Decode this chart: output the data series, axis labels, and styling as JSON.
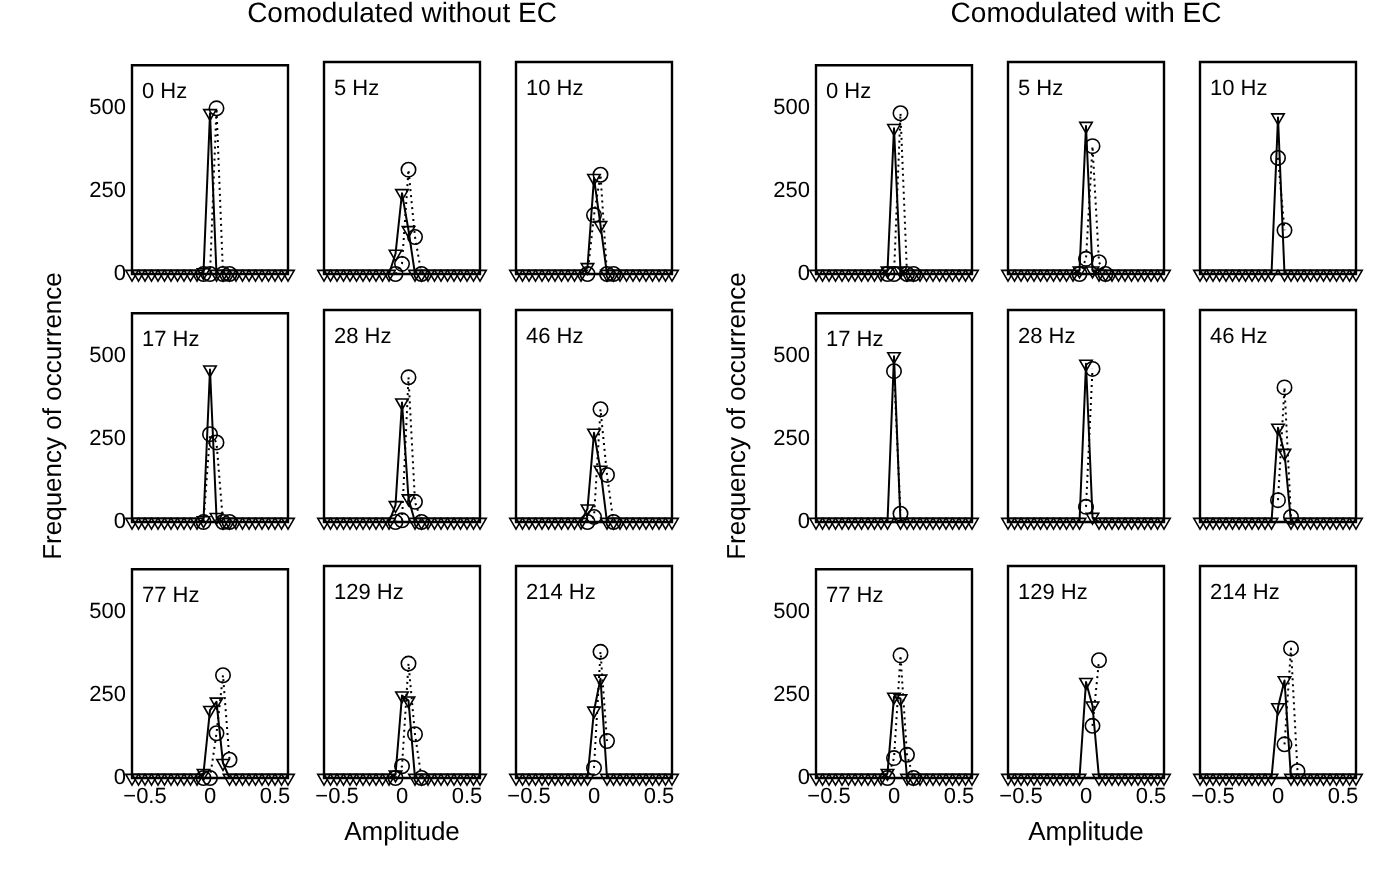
{
  "chart_data": [
    {
      "type": "line",
      "annotations": [
        "0 Hz"
      ],
      "x": [
        -0.6,
        -0.55,
        -0.5,
        -0.45,
        -0.4,
        -0.35,
        -0.3,
        -0.25,
        -0.2,
        -0.15,
        -0.1,
        -0.05,
        0,
        0.05,
        0.1,
        0.15,
        0.2,
        0.25,
        0.3,
        0.35,
        0.4,
        0.45,
        0.5,
        0.55,
        0.6
      ],
      "xlim": [
        -0.6,
        0.6
      ],
      "xticks": [
        -0.5,
        0,
        0.5
      ],
      "ylim": [
        0,
        630
      ],
      "yticks": [
        0,
        250,
        500
      ],
      "tick_labels": "y",
      "series": [
        {
          "color": "#000000",
          "marker": "triangle",
          "line_style": "solid",
          "values": [
            0,
            0,
            0,
            0,
            0,
            0,
            0,
            0,
            0,
            0,
            0,
            5,
            485,
            0,
            0,
            0,
            0,
            0,
            0,
            0,
            0,
            0,
            0,
            0,
            0
          ]
        },
        {
          "color": "#000000",
          "marker": "circle",
          "line_style": "dotted",
          "x": [
            -0.05,
            0,
            0.05,
            0.1,
            0.15
          ],
          "values": [
            0,
            0,
            500,
            0,
            0
          ]
        }
      ]
    },
    {
      "type": "line",
      "title": "Comodulated without EC",
      "annotations": [
        "5 Hz"
      ],
      "x": [
        -0.6,
        -0.55,
        -0.5,
        -0.45,
        -0.4,
        -0.35,
        -0.3,
        -0.25,
        -0.2,
        -0.15,
        -0.1,
        -0.05,
        0,
        0.05,
        0.1,
        0.15,
        0.2,
        0.25,
        0.3,
        0.35,
        0.4,
        0.45,
        0.5,
        0.55,
        0.6
      ],
      "xlim": [
        -0.6,
        0.6
      ],
      "xticks": [
        -0.5,
        0,
        0.5
      ],
      "ylim": [
        0,
        630
      ],
      "yticks": [
        0,
        250,
        500
      ],
      "tick_labels": false,
      "series": [
        {
          "color": "#000000",
          "marker": "triangle",
          "line_style": "solid",
          "values": [
            0,
            0,
            0,
            0,
            0,
            0,
            0,
            0,
            0,
            0,
            0,
            60,
            240,
            130,
            0,
            0,
            0,
            0,
            0,
            0,
            0,
            0,
            0,
            0,
            0
          ]
        },
        {
          "color": "#000000",
          "marker": "circle",
          "line_style": "dotted",
          "x": [
            -0.05,
            0,
            0.05,
            0.1,
            0.15
          ],
          "values": [
            0,
            30,
            310,
            110,
            0
          ]
        }
      ]
    },
    {
      "type": "line",
      "annotations": [
        "10 Hz"
      ],
      "x": [
        -0.6,
        -0.55,
        -0.5,
        -0.45,
        -0.4,
        -0.35,
        -0.3,
        -0.25,
        -0.2,
        -0.15,
        -0.1,
        -0.05,
        0,
        0.05,
        0.1,
        0.15,
        0.2,
        0.25,
        0.3,
        0.35,
        0.4,
        0.45,
        0.5,
        0.55,
        0.6
      ],
      "xlim": [
        -0.6,
        0.6
      ],
      "xticks": [
        -0.5,
        0,
        0.5
      ],
      "ylim": [
        0,
        630
      ],
      "yticks": [
        0,
        250,
        500
      ],
      "tick_labels": false,
      "series": [
        {
          "color": "#000000",
          "marker": "triangle",
          "line_style": "solid",
          "values": [
            0,
            0,
            0,
            0,
            0,
            0,
            0,
            0,
            0,
            0,
            0,
            20,
            285,
            145,
            0,
            0,
            0,
            0,
            0,
            0,
            0,
            0,
            0,
            0,
            0
          ]
        },
        {
          "color": "#000000",
          "marker": "circle",
          "line_style": "dotted",
          "x": [
            -0.05,
            0,
            0.05,
            0.1,
            0.15
          ],
          "values": [
            0,
            175,
            295,
            0,
            0
          ]
        }
      ]
    },
    {
      "type": "line",
      "ylabel": "Frequency of occurrence",
      "annotations": [
        "17 Hz"
      ],
      "x": [
        -0.6,
        -0.55,
        -0.5,
        -0.45,
        -0.4,
        -0.35,
        -0.3,
        -0.25,
        -0.2,
        -0.15,
        -0.1,
        -0.05,
        0,
        0.05,
        0.1,
        0.15,
        0.2,
        0.25,
        0.3,
        0.35,
        0.4,
        0.45,
        0.5,
        0.55,
        0.6
      ],
      "xlim": [
        -0.6,
        0.6
      ],
      "xticks": [
        -0.5,
        0,
        0.5
      ],
      "ylim": [
        0,
        630
      ],
      "yticks": [
        0,
        250,
        500
      ],
      "tick_labels": "y",
      "series": [
        {
          "color": "#000000",
          "marker": "triangle",
          "line_style": "solid",
          "values": [
            0,
            0,
            0,
            0,
            0,
            0,
            0,
            0,
            0,
            0,
            0,
            5,
            460,
            15,
            0,
            0,
            0,
            0,
            0,
            0,
            0,
            0,
            0,
            0,
            0
          ]
        },
        {
          "color": "#000000",
          "marker": "circle",
          "line_style": "dotted",
          "x": [
            -0.05,
            0,
            0.05,
            0.1,
            0.15
          ],
          "values": [
            0,
            265,
            240,
            0,
            0
          ]
        }
      ]
    },
    {
      "type": "line",
      "annotations": [
        "28 Hz"
      ],
      "x": [
        -0.6,
        -0.55,
        -0.5,
        -0.45,
        -0.4,
        -0.35,
        -0.3,
        -0.25,
        -0.2,
        -0.15,
        -0.1,
        -0.05,
        0,
        0.05,
        0.1,
        0.15,
        0.2,
        0.25,
        0.3,
        0.35,
        0.4,
        0.45,
        0.5,
        0.55,
        0.6
      ],
      "xlim": [
        -0.6,
        0.6
      ],
      "xticks": [
        -0.5,
        0,
        0.5
      ],
      "ylim": [
        0,
        630
      ],
      "yticks": [
        0,
        250,
        500
      ],
      "tick_labels": false,
      "series": [
        {
          "color": "#000000",
          "marker": "triangle",
          "line_style": "solid",
          "values": [
            0,
            0,
            0,
            0,
            0,
            0,
            0,
            0,
            0,
            0,
            0,
            50,
            355,
            70,
            0,
            0,
            0,
            0,
            0,
            0,
            0,
            0,
            0,
            0,
            0
          ]
        },
        {
          "color": "#000000",
          "marker": "circle",
          "line_style": "dotted",
          "x": [
            -0.05,
            0,
            0.05,
            0.1,
            0.15
          ],
          "values": [
            0,
            5,
            430,
            60,
            0
          ]
        }
      ]
    },
    {
      "type": "line",
      "annotations": [
        "46 Hz"
      ],
      "x": [
        -0.6,
        -0.55,
        -0.5,
        -0.45,
        -0.4,
        -0.35,
        -0.3,
        -0.25,
        -0.2,
        -0.15,
        -0.1,
        -0.05,
        0,
        0.05,
        0.1,
        0.15,
        0.2,
        0.25,
        0.3,
        0.35,
        0.4,
        0.45,
        0.5,
        0.55,
        0.6
      ],
      "xlim": [
        -0.6,
        0.6
      ],
      "xticks": [
        -0.5,
        0,
        0.5
      ],
      "ylim": [
        0,
        630
      ],
      "yticks": [
        0,
        250,
        500
      ],
      "tick_labels": false,
      "series": [
        {
          "color": "#000000",
          "marker": "triangle",
          "line_style": "solid",
          "values": [
            0,
            0,
            0,
            0,
            0,
            0,
            0,
            0,
            0,
            0,
            0,
            40,
            265,
            155,
            0,
            0,
            0,
            0,
            0,
            0,
            0,
            0,
            0,
            0,
            0
          ]
        },
        {
          "color": "#000000",
          "marker": "circle",
          "line_style": "dotted",
          "x": [
            -0.05,
            0,
            0.05,
            0.1,
            0.15
          ],
          "values": [
            0,
            15,
            335,
            140,
            0
          ]
        }
      ]
    },
    {
      "type": "line",
      "annotations": [
        "77 Hz"
      ],
      "x": [
        -0.6,
        -0.55,
        -0.5,
        -0.45,
        -0.4,
        -0.35,
        -0.3,
        -0.25,
        -0.2,
        -0.15,
        -0.1,
        -0.05,
        0,
        0.05,
        0.1,
        0.15,
        0.2,
        0.25,
        0.3,
        0.35,
        0.4,
        0.45,
        0.5,
        0.55,
        0.6
      ],
      "xlim": [
        -0.6,
        0.6
      ],
      "xticks": [
        -0.5,
        0,
        0.5
      ],
      "ylim": [
        0,
        630
      ],
      "yticks": [
        0,
        250,
        500
      ],
      "series": [
        {
          "color": "#000000",
          "marker": "triangle",
          "line_style": "solid",
          "values": [
            0,
            0,
            0,
            0,
            0,
            0,
            0,
            0,
            0,
            0,
            0,
            15,
            205,
            230,
            45,
            0,
            0,
            0,
            0,
            0,
            0,
            0,
            0,
            0,
            0
          ]
        },
        {
          "color": "#000000",
          "marker": "circle",
          "line_style": "dotted",
          "x": [
            -0.05,
            0,
            0.05,
            0.1,
            0.15
          ],
          "values": [
            0,
            0,
            135,
            310,
            55
          ]
        }
      ]
    },
    {
      "type": "line",
      "xlabel": "Amplitude",
      "annotations": [
        "129 Hz"
      ],
      "x": [
        -0.6,
        -0.55,
        -0.5,
        -0.45,
        -0.4,
        -0.35,
        -0.3,
        -0.25,
        -0.2,
        -0.15,
        -0.1,
        -0.05,
        0,
        0.05,
        0.1,
        0.15,
        0.2,
        0.25,
        0.3,
        0.35,
        0.4,
        0.45,
        0.5,
        0.55,
        0.6
      ],
      "xlim": [
        -0.6,
        0.6
      ],
      "xticks": [
        -0.5,
        0,
        0.5
      ],
      "ylim": [
        0,
        630
      ],
      "yticks": [
        0,
        250,
        500
      ],
      "tick_labels": "x",
      "series": [
        {
          "color": "#000000",
          "marker": "triangle",
          "line_style": "solid",
          "values": [
            0,
            0,
            0,
            0,
            0,
            0,
            0,
            0,
            0,
            0,
            0,
            10,
            245,
            230,
            0,
            0,
            0,
            0,
            0,
            0,
            0,
            0,
            0,
            0,
            0
          ]
        },
        {
          "color": "#000000",
          "marker": "circle",
          "line_style": "dotted",
          "x": [
            -0.05,
            0,
            0.05,
            0.1,
            0.15
          ],
          "values": [
            0,
            35,
            340,
            130,
            0
          ]
        }
      ]
    },
    {
      "type": "line",
      "annotations": [
        "214 Hz"
      ],
      "x": [
        -0.6,
        -0.55,
        -0.5,
        -0.45,
        -0.4,
        -0.35,
        -0.3,
        -0.25,
        -0.2,
        -0.15,
        -0.1,
        -0.05,
        0,
        0.05,
        0.1,
        0.15,
        0.2,
        0.25,
        0.3,
        0.35,
        0.4,
        0.45,
        0.5,
        0.55,
        0.6
      ],
      "xlim": [
        -0.6,
        0.6
      ],
      "xticks": [
        -0.5,
        0,
        0.5
      ],
      "ylim": [
        0,
        630
      ],
      "yticks": [
        0,
        250,
        500
      ],
      "tick_labels": "x",
      "series": [
        {
          "color": "#000000",
          "marker": "triangle",
          "line_style": "solid",
          "values": [
            0,
            0,
            0,
            0,
            0,
            0,
            0,
            0,
            0,
            0,
            0,
            0,
            200,
            295,
            0,
            0,
            0,
            0,
            0,
            0,
            0,
            0,
            0,
            0,
            0
          ]
        },
        {
          "color": "#000000",
          "marker": "circle",
          "line_style": "dotted",
          "x": [
            0,
            0.05,
            0.1
          ],
          "values": [
            30,
            375,
            110
          ]
        }
      ]
    },
    {
      "type": "line",
      "annotations": [
        "0 Hz"
      ],
      "x": [
        -0.6,
        -0.55,
        -0.5,
        -0.45,
        -0.4,
        -0.35,
        -0.3,
        -0.25,
        -0.2,
        -0.15,
        -0.1,
        -0.05,
        0,
        0.05,
        0.1,
        0.15,
        0.2,
        0.25,
        0.3,
        0.35,
        0.4,
        0.45,
        0.5,
        0.55,
        0.6
      ],
      "xlim": [
        -0.6,
        0.6
      ],
      "xticks": [
        -0.5,
        0,
        0.5
      ],
      "ylim": [
        0,
        630
      ],
      "yticks": [
        0,
        250,
        500
      ],
      "tick_labels": "y",
      "series": [
        {
          "color": "#000000",
          "marker": "triangle",
          "line_style": "solid",
          "values": [
            0,
            0,
            0,
            0,
            0,
            0,
            0,
            0,
            0,
            0,
            0,
            10,
            440,
            10,
            0,
            0,
            0,
            0,
            0,
            0,
            0,
            0,
            0,
            0,
            0
          ]
        },
        {
          "color": "#000000",
          "marker": "circle",
          "line_style": "dotted",
          "x": [
            -0.05,
            0,
            0.05,
            0.1,
            0.15
          ],
          "values": [
            0,
            0,
            485,
            0,
            0
          ]
        }
      ]
    },
    {
      "type": "line",
      "title": "Comodulated with EC",
      "annotations": [
        "5 Hz"
      ],
      "x": [
        -0.6,
        -0.55,
        -0.5,
        -0.45,
        -0.4,
        -0.35,
        -0.3,
        -0.25,
        -0.2,
        -0.15,
        -0.1,
        -0.05,
        0,
        0.05,
        0.1,
        0.15,
        0.2,
        0.25,
        0.3,
        0.35,
        0.4,
        0.45,
        0.5,
        0.55,
        0.6
      ],
      "xlim": [
        -0.6,
        0.6
      ],
      "xticks": [
        -0.5,
        0,
        0.5
      ],
      "ylim": [
        0,
        630
      ],
      "yticks": [
        0,
        250,
        500
      ],
      "tick_labels": false,
      "series": [
        {
          "color": "#000000",
          "marker": "triangle",
          "line_style": "solid",
          "values": [
            0,
            0,
            0,
            0,
            0,
            0,
            0,
            0,
            0,
            0,
            0,
            10,
            440,
            10,
            0,
            0,
            0,
            0,
            0,
            0,
            0,
            0,
            0,
            0,
            0
          ]
        },
        {
          "color": "#000000",
          "marker": "circle",
          "line_style": "dotted",
          "x": [
            -0.05,
            0,
            0.05,
            0.1,
            0.15
          ],
          "values": [
            0,
            45,
            380,
            35,
            0
          ]
        }
      ]
    },
    {
      "type": "line",
      "annotations": [
        "10 Hz"
      ],
      "x": [
        -0.6,
        -0.55,
        -0.5,
        -0.45,
        -0.4,
        -0.35,
        -0.3,
        -0.25,
        -0.2,
        -0.15,
        -0.1,
        -0.05,
        0,
        0.05,
        0.1,
        0.15,
        0.2,
        0.25,
        0.3,
        0.35,
        0.4,
        0.45,
        0.5,
        0.55,
        0.6
      ],
      "xlim": [
        -0.6,
        0.6
      ],
      "xticks": [
        -0.5,
        0,
        0.5
      ],
      "ylim": [
        0,
        630
      ],
      "yticks": [
        0,
        250,
        500
      ],
      "tick_labels": false,
      "series": [
        {
          "color": "#000000",
          "marker": "triangle",
          "line_style": "solid",
          "values": [
            0,
            0,
            0,
            0,
            0,
            0,
            0,
            0,
            0,
            0,
            0,
            0,
            465,
            0,
            0,
            0,
            0,
            0,
            0,
            0,
            0,
            0,
            0,
            0,
            0
          ]
        },
        {
          "color": "#000000",
          "marker": "circle",
          "line_style": "dotted",
          "x": [
            0,
            0.05
          ],
          "values": [
            345,
            130
          ]
        }
      ]
    },
    {
      "type": "line",
      "ylabel": "Frequency of occurrence",
      "annotations": [
        "17 Hz"
      ],
      "x": [
        -0.6,
        -0.55,
        -0.5,
        -0.45,
        -0.4,
        -0.35,
        -0.3,
        -0.25,
        -0.2,
        -0.15,
        -0.1,
        -0.05,
        0,
        0.05,
        0.1,
        0.15,
        0.2,
        0.25,
        0.3,
        0.35,
        0.4,
        0.45,
        0.5,
        0.55,
        0.6
      ],
      "xlim": [
        -0.6,
        0.6
      ],
      "xticks": [
        -0.5,
        0,
        0.5
      ],
      "ylim": [
        0,
        630
      ],
      "yticks": [
        0,
        250,
        500
      ],
      "tick_labels": "y",
      "series": [
        {
          "color": "#000000",
          "marker": "triangle",
          "line_style": "solid",
          "values": [
            0,
            0,
            0,
            0,
            0,
            0,
            0,
            0,
            0,
            0,
            0,
            0,
            500,
            0,
            0,
            0,
            0,
            0,
            0,
            0,
            0,
            0,
            0,
            0,
            0
          ]
        },
        {
          "color": "#000000",
          "marker": "circle",
          "line_style": "dotted",
          "x": [
            0,
            0.05
          ],
          "values": [
            455,
            25
          ]
        }
      ]
    },
    {
      "type": "line",
      "annotations": [
        "28 Hz"
      ],
      "x": [
        -0.6,
        -0.55,
        -0.5,
        -0.45,
        -0.4,
        -0.35,
        -0.3,
        -0.25,
        -0.2,
        -0.15,
        -0.1,
        -0.05,
        0,
        0.05,
        0.1,
        0.15,
        0.2,
        0.25,
        0.3,
        0.35,
        0.4,
        0.45,
        0.5,
        0.55,
        0.6
      ],
      "xlim": [
        -0.6,
        0.6
      ],
      "xticks": [
        -0.5,
        0,
        0.5
      ],
      "ylim": [
        0,
        630
      ],
      "yticks": [
        0,
        250,
        500
      ],
      "tick_labels": false,
      "series": [
        {
          "color": "#000000",
          "marker": "triangle",
          "line_style": "solid",
          "values": [
            0,
            0,
            0,
            0,
            0,
            0,
            0,
            0,
            0,
            0,
            0,
            0,
            470,
            15,
            0,
            0,
            0,
            0,
            0,
            0,
            0,
            0,
            0,
            0,
            0
          ]
        },
        {
          "color": "#000000",
          "marker": "circle",
          "line_style": "dotted",
          "x": [
            0,
            0.05
          ],
          "values": [
            45,
            455
          ]
        }
      ]
    },
    {
      "type": "line",
      "annotations": [
        "46 Hz"
      ],
      "x": [
        -0.6,
        -0.55,
        -0.5,
        -0.45,
        -0.4,
        -0.35,
        -0.3,
        -0.25,
        -0.2,
        -0.15,
        -0.1,
        -0.05,
        0,
        0.05,
        0.1,
        0.15,
        0.2,
        0.25,
        0.3,
        0.35,
        0.4,
        0.45,
        0.5,
        0.55,
        0.6
      ],
      "xlim": [
        -0.6,
        0.6
      ],
      "xticks": [
        -0.5,
        0,
        0.5
      ],
      "ylim": [
        0,
        630
      ],
      "yticks": [
        0,
        250,
        500
      ],
      "tick_labels": false,
      "series": [
        {
          "color": "#000000",
          "marker": "triangle",
          "line_style": "solid",
          "values": [
            0,
            0,
            0,
            0,
            0,
            0,
            0,
            0,
            0,
            0,
            0,
            0,
            280,
            205,
            0,
            0,
            0,
            0,
            0,
            0,
            0,
            0,
            0,
            0,
            0
          ]
        },
        {
          "color": "#000000",
          "marker": "circle",
          "line_style": "dotted",
          "x": [
            0,
            0.05,
            0.1
          ],
          "values": [
            65,
            400,
            15
          ]
        }
      ]
    },
    {
      "type": "line",
      "annotations": [
        "77 Hz"
      ],
      "x": [
        -0.6,
        -0.55,
        -0.5,
        -0.45,
        -0.4,
        -0.35,
        -0.3,
        -0.25,
        -0.2,
        -0.15,
        -0.1,
        -0.05,
        0,
        0.05,
        0.1,
        0.15,
        0.2,
        0.25,
        0.3,
        0.35,
        0.4,
        0.45,
        0.5,
        0.55,
        0.6
      ],
      "xlim": [
        -0.6,
        0.6
      ],
      "xticks": [
        -0.5,
        0,
        0.5
      ],
      "ylim": [
        0,
        630
      ],
      "yticks": [
        0,
        250,
        500
      ],
      "series": [
        {
          "color": "#000000",
          "marker": "triangle",
          "line_style": "solid",
          "values": [
            0,
            0,
            0,
            0,
            0,
            0,
            0,
            0,
            0,
            0,
            0,
            15,
            245,
            240,
            0,
            0,
            0,
            0,
            0,
            0,
            0,
            0,
            0,
            0,
            0
          ]
        },
        {
          "color": "#000000",
          "marker": "circle",
          "line_style": "dotted",
          "x": [
            -0.05,
            0,
            0.05,
            0.1,
            0.15
          ],
          "values": [
            0,
            60,
            370,
            70,
            0
          ]
        }
      ]
    },
    {
      "type": "line",
      "xlabel": "Amplitude",
      "annotations": [
        "129 Hz"
      ],
      "x": [
        -0.6,
        -0.55,
        -0.5,
        -0.45,
        -0.4,
        -0.35,
        -0.3,
        -0.25,
        -0.2,
        -0.15,
        -0.1,
        -0.05,
        0,
        0.05,
        0.1,
        0.15,
        0.2,
        0.25,
        0.3,
        0.35,
        0.4,
        0.45,
        0.5,
        0.55,
        0.6
      ],
      "xlim": [
        -0.6,
        0.6
      ],
      "xticks": [
        -0.5,
        0,
        0.5
      ],
      "ylim": [
        0,
        630
      ],
      "yticks": [
        0,
        250,
        500
      ],
      "tick_labels": "x",
      "series": [
        {
          "color": "#000000",
          "marker": "triangle",
          "line_style": "solid",
          "values": [
            0,
            0,
            0,
            0,
            0,
            0,
            0,
            0,
            0,
            0,
            0,
            0,
            285,
            215,
            0,
            0,
            0,
            0,
            0,
            0,
            0,
            0,
            0,
            0,
            0
          ]
        },
        {
          "color": "#000000",
          "marker": "circle",
          "line_style": "dotted",
          "x": [
            0.05,
            0.1
          ],
          "values": [
            155,
            350
          ]
        }
      ]
    },
    {
      "type": "line",
      "annotations": [
        "214 Hz"
      ],
      "x": [
        -0.6,
        -0.55,
        -0.5,
        -0.45,
        -0.4,
        -0.35,
        -0.3,
        -0.25,
        -0.2,
        -0.15,
        -0.1,
        -0.05,
        0,
        0.05,
        0.1,
        0.15,
        0.2,
        0.25,
        0.3,
        0.35,
        0.4,
        0.45,
        0.5,
        0.55,
        0.6
      ],
      "xlim": [
        -0.6,
        0.6
      ],
      "xticks": [
        -0.5,
        0,
        0.5
      ],
      "ylim": [
        0,
        630
      ],
      "yticks": [
        0,
        250,
        500
      ],
      "tick_labels": "x",
      "series": [
        {
          "color": "#000000",
          "marker": "triangle",
          "line_style": "solid",
          "values": [
            0,
            0,
            0,
            0,
            0,
            0,
            0,
            0,
            0,
            0,
            0,
            0,
            210,
            290,
            0,
            0,
            0,
            0,
            0,
            0,
            0,
            0,
            0,
            0,
            0
          ]
        },
        {
          "color": "#000000",
          "marker": "circle",
          "line_style": "dotted",
          "x": [
            0.05,
            0.1,
            0.15
          ],
          "values": [
            100,
            385,
            20
          ]
        }
      ]
    }
  ]
}
